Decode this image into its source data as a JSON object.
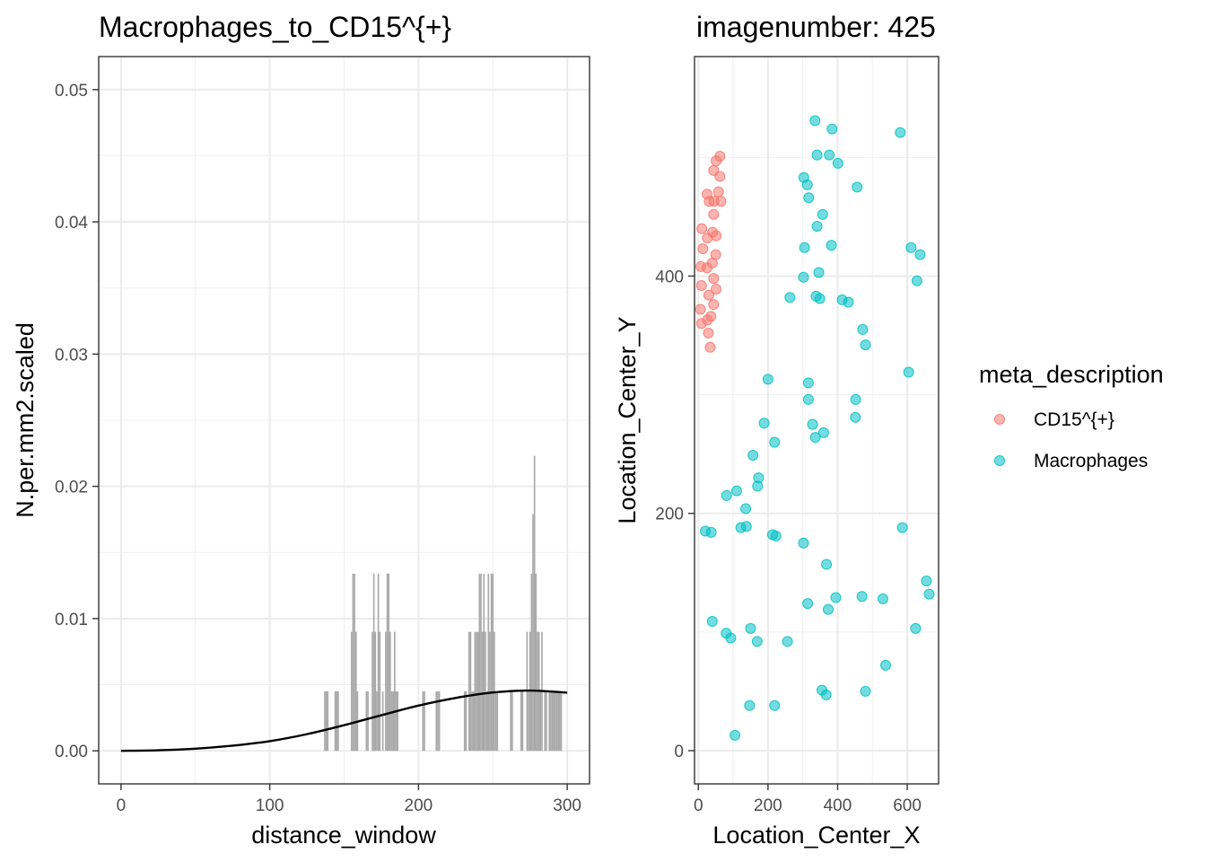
{
  "chart_data": [
    {
      "type": "bar",
      "title": "Macrophages_to_CD15^{+}",
      "xlabel": "distance_window",
      "ylabel": "N.per.mm2.scaled",
      "xlim": [
        -15,
        315
      ],
      "ylim": [
        -0.0025,
        0.0525
      ],
      "xticks": [
        0,
        100,
        200,
        300
      ],
      "yticks": [
        0.0,
        0.01,
        0.02,
        0.03,
        0.04,
        0.05
      ],
      "ytick_labels": [
        "0.00",
        "0.01",
        "0.02",
        "0.03",
        "0.04",
        "0.05"
      ],
      "grid": true,
      "bar_color": "#a9a9a9",
      "bars": [
        {
          "x": 137,
          "y": 0.0045
        },
        {
          "x": 138,
          "y": 0.0045
        },
        {
          "x": 139,
          "y": 0.0045
        },
        {
          "x": 144,
          "y": 0.0045
        },
        {
          "x": 145,
          "y": 0.0045
        },
        {
          "x": 146,
          "y": 0.0045
        },
        {
          "x": 155,
          "y": 0.009
        },
        {
          "x": 156,
          "y": 0.0134
        },
        {
          "x": 157,
          "y": 0.0134
        },
        {
          "x": 158,
          "y": 0.009
        },
        {
          "x": 159,
          "y": 0.0045
        },
        {
          "x": 165,
          "y": 0.0045
        },
        {
          "x": 166,
          "y": 0.0045
        },
        {
          "x": 169,
          "y": 0.009
        },
        {
          "x": 170,
          "y": 0.0134
        },
        {
          "x": 171,
          "y": 0.009
        },
        {
          "x": 172,
          "y": 0.0045
        },
        {
          "x": 173,
          "y": 0.0134
        },
        {
          "x": 174,
          "y": 0.009
        },
        {
          "x": 176,
          "y": 0.0045
        },
        {
          "x": 178,
          "y": 0.009
        },
        {
          "x": 179,
          "y": 0.0134
        },
        {
          "x": 180,
          "y": 0.0134
        },
        {
          "x": 181,
          "y": 0.009
        },
        {
          "x": 182,
          "y": 0.0045
        },
        {
          "x": 183,
          "y": 0.0045
        },
        {
          "x": 184,
          "y": 0.009
        },
        {
          "x": 185,
          "y": 0.0045
        },
        {
          "x": 186,
          "y": 0.0045
        },
        {
          "x": 203,
          "y": 0.0045
        },
        {
          "x": 204,
          "y": 0.0045
        },
        {
          "x": 212,
          "y": 0.0045
        },
        {
          "x": 213,
          "y": 0.0045
        },
        {
          "x": 214,
          "y": 0.0045
        },
        {
          "x": 231,
          "y": 0.0045
        },
        {
          "x": 232,
          "y": 0.0045
        },
        {
          "x": 234,
          "y": 0.009
        },
        {
          "x": 235,
          "y": 0.009
        },
        {
          "x": 236,
          "y": 0.0045
        },
        {
          "x": 237,
          "y": 0.0045
        },
        {
          "x": 238,
          "y": 0.009
        },
        {
          "x": 239,
          "y": 0.009
        },
        {
          "x": 240,
          "y": 0.009
        },
        {
          "x": 241,
          "y": 0.0134
        },
        {
          "x": 242,
          "y": 0.0134
        },
        {
          "x": 243,
          "y": 0.009
        },
        {
          "x": 244,
          "y": 0.0134
        },
        {
          "x": 245,
          "y": 0.009
        },
        {
          "x": 246,
          "y": 0.0045
        },
        {
          "x": 247,
          "y": 0.0134
        },
        {
          "x": 248,
          "y": 0.009
        },
        {
          "x": 249,
          "y": 0.0134
        },
        {
          "x": 250,
          "y": 0.0134
        },
        {
          "x": 251,
          "y": 0.009
        },
        {
          "x": 252,
          "y": 0.0045
        },
        {
          "x": 253,
          "y": 0.0045
        },
        {
          "x": 262,
          "y": 0.0045
        },
        {
          "x": 263,
          "y": 0.0045
        },
        {
          "x": 269,
          "y": 0.0045
        },
        {
          "x": 270,
          "y": 0.0045
        },
        {
          "x": 273,
          "y": 0.009
        },
        {
          "x": 274,
          "y": 0.0045
        },
        {
          "x": 275,
          "y": 0.009
        },
        {
          "x": 276,
          "y": 0.0134
        },
        {
          "x": 277,
          "y": 0.0179
        },
        {
          "x": 278,
          "y": 0.0223
        },
        {
          "x": 279,
          "y": 0.0134
        },
        {
          "x": 280,
          "y": 0.009
        },
        {
          "x": 281,
          "y": 0.009
        },
        {
          "x": 282,
          "y": 0.0045
        },
        {
          "x": 283,
          "y": 0.009
        },
        {
          "x": 285,
          "y": 0.0045
        },
        {
          "x": 286,
          "y": 0.0045
        },
        {
          "x": 288,
          "y": 0.0045
        },
        {
          "x": 289,
          "y": 0.0045
        },
        {
          "x": 290,
          "y": 0.0045
        },
        {
          "x": 291,
          "y": 0.0045
        },
        {
          "x": 292,
          "y": 0.0045
        },
        {
          "x": 293,
          "y": 0.0045
        },
        {
          "x": 294,
          "y": 0.0045
        },
        {
          "x": 295,
          "y": 0.0045
        },
        {
          "x": 296,
          "y": 0.0045
        }
      ],
      "curve": [
        {
          "x": 0,
          "y": 0.0
        },
        {
          "x": 25,
          "y": 4e-05
        },
        {
          "x": 50,
          "y": 0.00016
        },
        {
          "x": 75,
          "y": 0.00039
        },
        {
          "x": 100,
          "y": 0.00073
        },
        {
          "x": 125,
          "y": 0.00126
        },
        {
          "x": 150,
          "y": 0.00194
        },
        {
          "x": 175,
          "y": 0.00269
        },
        {
          "x": 200,
          "y": 0.00342
        },
        {
          "x": 225,
          "y": 0.004
        },
        {
          "x": 250,
          "y": 0.00441
        },
        {
          "x": 275,
          "y": 0.00456
        },
        {
          "x": 300,
          "y": 0.0044
        }
      ]
    },
    {
      "type": "scatter",
      "title": "imagenumber:  425",
      "xlabel": "Location_Center_X",
      "ylabel": "Location_Center_Y",
      "xlim": [
        -11,
        690
      ],
      "ylim": [
        -28,
        585
      ],
      "xticks": [
        0,
        200,
        400,
        600
      ],
      "yticks": [
        0,
        200,
        400
      ],
      "grid": true,
      "legend": {
        "title": "meta_description",
        "position": "right"
      },
      "series": [
        {
          "name": "CD15^{+}",
          "color": "#F8766D",
          "points": [
            [
              62,
              501
            ],
            [
              51,
              497
            ],
            [
              44,
              489
            ],
            [
              62,
              484
            ],
            [
              58,
              471
            ],
            [
              25,
              469
            ],
            [
              31,
              463
            ],
            [
              45,
              463
            ],
            [
              65,
              463
            ],
            [
              44,
              452
            ],
            [
              10,
              440
            ],
            [
              41,
              437
            ],
            [
              51,
              434
            ],
            [
              26,
              432
            ],
            [
              13,
              423
            ],
            [
              50,
              418
            ],
            [
              40,
              411
            ],
            [
              7,
              408
            ],
            [
              25,
              407
            ],
            [
              44,
              398
            ],
            [
              9,
              392
            ],
            [
              51,
              389
            ],
            [
              30,
              384
            ],
            [
              44,
              376
            ],
            [
              6,
              372
            ],
            [
              36,
              366
            ],
            [
              26,
              363
            ],
            [
              9,
              360
            ],
            [
              29,
              352
            ],
            [
              34,
              340
            ]
          ]
        },
        {
          "name": "Macrophages",
          "color": "#00BFC4",
          "points": [
            [
              335,
              531
            ],
            [
              384,
              524
            ],
            [
              580,
              521
            ],
            [
              341,
              502
            ],
            [
              376,
              502
            ],
            [
              401,
              495
            ],
            [
              303,
              483
            ],
            [
              313,
              477
            ],
            [
              456,
              475
            ],
            [
              317,
              466
            ],
            [
              357,
              452
            ],
            [
              341,
              442
            ],
            [
              305,
              424
            ],
            [
              382,
              426
            ],
            [
              611,
              424
            ],
            [
              637,
              418
            ],
            [
              346,
              403
            ],
            [
              302,
              399
            ],
            [
              628,
              396
            ],
            [
              263,
              382
            ],
            [
              338,
              383
            ],
            [
              349,
              381
            ],
            [
              413,
              380
            ],
            [
              431,
              378
            ],
            [
              472,
              355
            ],
            [
              480,
              342
            ],
            [
              604,
              319
            ],
            [
              200,
              313
            ],
            [
              316,
              310
            ],
            [
              316,
              296
            ],
            [
              452,
              296
            ],
            [
              189,
              276
            ],
            [
              328,
              275
            ],
            [
              360,
              268
            ],
            [
              336,
              264
            ],
            [
              451,
              281
            ],
            [
              219,
              260
            ],
            [
              157,
              249
            ],
            [
              173,
              230
            ],
            [
              170,
              223
            ],
            [
              110,
              219
            ],
            [
              81,
              215
            ],
            [
              136,
              204
            ],
            [
              586,
              188
            ],
            [
              20,
              185
            ],
            [
              37,
              184
            ],
            [
              138,
              189
            ],
            [
              122,
              188
            ],
            [
              213,
              182
            ],
            [
              223,
              181
            ],
            [
              302,
              175
            ],
            [
              368,
              157
            ],
            [
              655,
              143
            ],
            [
              663,
              132
            ],
            [
              395,
              129
            ],
            [
              470,
              130
            ],
            [
              530,
              128
            ],
            [
              314,
              124
            ],
            [
              373,
              119
            ],
            [
              40,
              109
            ],
            [
              624,
              103
            ],
            [
              150,
              103
            ],
            [
              80,
              99
            ],
            [
              93,
              95
            ],
            [
              169,
              92
            ],
            [
              256,
              92
            ],
            [
              538,
              72
            ],
            [
              355,
              51
            ],
            [
              367,
              47
            ],
            [
              480,
              50
            ],
            [
              147,
              38
            ],
            [
              219,
              38
            ],
            [
              105,
              13
            ]
          ]
        }
      ]
    }
  ]
}
